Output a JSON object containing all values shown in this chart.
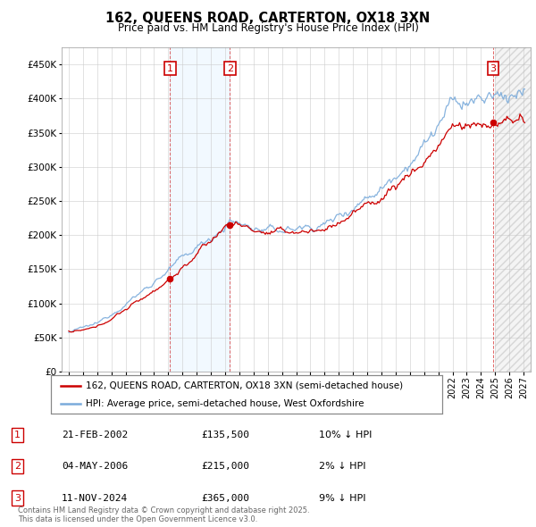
{
  "title": "162, QUEENS ROAD, CARTERTON, OX18 3XN",
  "subtitle": "Price paid vs. HM Land Registry's House Price Index (HPI)",
  "sales": [
    {
      "num": 1,
      "date_str": "21-FEB-2002",
      "price": 135500,
      "year": 2002.13,
      "pct": "10%",
      "dir": "↓"
    },
    {
      "num": 2,
      "date_str": "04-MAY-2006",
      "price": 215000,
      "year": 2006.34,
      "pct": "2%",
      "dir": "↓"
    },
    {
      "num": 3,
      "date_str": "11-NOV-2024",
      "price": 365000,
      "year": 2024.86,
      "pct": "9%",
      "dir": "↓"
    }
  ],
  "hpi_color": "#7aabdb",
  "price_color": "#cc0000",
  "sale_marker_color": "#cc0000",
  "annotation_box_color": "#cc0000",
  "grid_color": "#cccccc",
  "ylim": [
    0,
    475000
  ],
  "xlim": [
    1994.5,
    2027.5
  ],
  "yticks": [
    0,
    50000,
    100000,
    150000,
    200000,
    250000,
    300000,
    350000,
    400000,
    450000
  ],
  "footer_text": "Contains HM Land Registry data © Crown copyright and database right 2025.\nThis data is licensed under the Open Government Licence v3.0.",
  "legend_address": "162, QUEENS ROAD, CARTERTON, OX18 3XN (semi-detached house)",
  "legend_hpi": "HPI: Average price, semi-detached house, West Oxfordshire",
  "figsize": [
    6.0,
    5.9
  ],
  "dpi": 100
}
